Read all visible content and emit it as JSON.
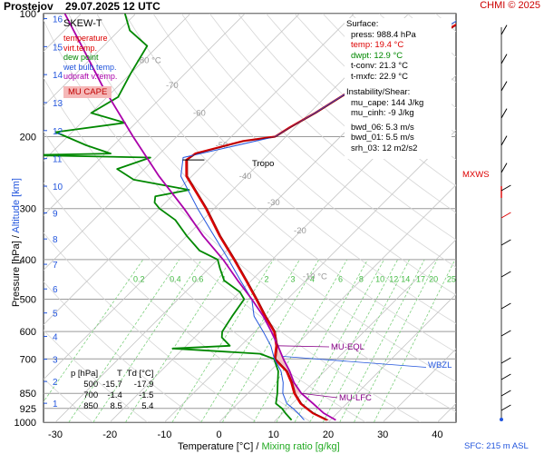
{
  "header": {
    "station": "Prostejov",
    "datetime": "29.07.2025 12 UTC",
    "credit": "CHMI © 2025"
  },
  "diagram_label": "SKEW-T",
  "legend": [
    {
      "label": "temperature",
      "color": "#dd0000"
    },
    {
      "label": "virt.temp.",
      "color": "#dd0000"
    },
    {
      "label": "dew point",
      "color": "#008800"
    },
    {
      "label": "wet bulb temp.",
      "color": "#2255dd"
    },
    {
      "label": "udpraft v.temp.",
      "color": "#aa00aa"
    }
  ],
  "mu_cape_badge": "MU CAPE",
  "info": {
    "surface_heading": "Surface:",
    "press": "press: 988.4 hPa",
    "temp": "temp: 19.4 °C",
    "dwpt": "dwpt: 12.9 °C",
    "t_conv": "t-conv: 21.3 °C",
    "t_mxfc": "t-mxfc: 22.9 °C",
    "instability_heading": "Instability/Shear:",
    "mu_cape": "mu_cape: 144 J/kg",
    "mu_cinh": "mu_cinh: -9 J/kg",
    "bwd_06": "bwd_06: 5.3 m/s",
    "bwd_01": "bwd_01: 5.5 m/s",
    "srh_03": "srh_03: 12 m2/s2",
    "colors": {
      "temp": "#dd0000",
      "dwpt": "#008800"
    }
  },
  "level_table": {
    "headers": [
      "p [hPa]",
      "T",
      "Td [°C]"
    ],
    "rows": [
      [
        "500",
        "-15.7",
        "-17.9"
      ],
      [
        "700",
        "-1.4",
        "-1.5"
      ],
      [
        "850",
        "8.5",
        "5.4"
      ]
    ]
  },
  "annotations": {
    "tropo": "Tropo",
    "mu_eql": "MU-EQL",
    "mu_lfc": "MU-LFC",
    "wbzl": "WBZL",
    "mxws": "MXWS",
    "sfc": "SFC: 215 m ASL"
  },
  "axes": {
    "xlabel_temp": "Temperature [°C]",
    "xlabel_sep": "/",
    "xlabel_mix": "Mixing ratio [g/kg]",
    "ylabel_pressure": "Pressure [hPa]",
    "ylabel_sep": "/",
    "ylabel_altitude": "Altitude [km]"
  },
  "chart_data": {
    "type": "line",
    "subtype": "skew-t log-p",
    "pressure_ticks": [
      100,
      200,
      300,
      400,
      500,
      600,
      700,
      850,
      925,
      1000
    ],
    "temperature_ticks": [
      -30,
      -20,
      -10,
      0,
      10,
      20,
      30,
      40
    ],
    "xlim": [
      -36,
      46
    ],
    "ylim_hpa": [
      1000,
      100
    ],
    "altitude_ticks_km": [
      1,
      2,
      3,
      4,
      5,
      6,
      7,
      8,
      9,
      10,
      11,
      12,
      13,
      14,
      15,
      16
    ],
    "mixing_ratio_labels": [
      "0.2",
      "0.4",
      "0.6",
      "1",
      "2",
      "3",
      "4",
      "6",
      "8",
      "10",
      "12",
      "14",
      "17",
      "20",
      "25"
    ],
    "isotherm_labels": [
      "-80 °C",
      "-70",
      "-60",
      "-50",
      "-40",
      "-30",
      "-20",
      "-10 °C"
    ],
    "grid": true,
    "series": [
      {
        "name": "temperature",
        "color": "#dd0000",
        "points": [
          [
            988,
            19.4
          ],
          [
            950,
            15.5
          ],
          [
            925,
            13.5
          ],
          [
            900,
            11.5
          ],
          [
            850,
            8.5
          ],
          [
            800,
            6.0
          ],
          [
            750,
            3.0
          ],
          [
            700,
            -1.4
          ],
          [
            650,
            -3.5
          ],
          [
            600,
            -6.5
          ],
          [
            550,
            -11
          ],
          [
            500,
            -15.7
          ],
          [
            450,
            -21
          ],
          [
            400,
            -27
          ],
          [
            350,
            -34
          ],
          [
            300,
            -41.5
          ],
          [
            250,
            -51
          ],
          [
            228,
            -54
          ],
          [
            220,
            -53.5
          ],
          [
            205,
            -47
          ],
          [
            200,
            -42
          ],
          [
            190,
            -41
          ],
          [
            175,
            -39
          ],
          [
            150,
            -36
          ],
          [
            130,
            -34
          ],
          [
            110,
            -30
          ],
          [
            100,
            -28
          ]
        ]
      },
      {
        "name": "dew point",
        "color": "#008800",
        "points": [
          [
            988,
            12.9
          ],
          [
            950,
            10.5
          ],
          [
            925,
            9
          ],
          [
            900,
            7
          ],
          [
            850,
            5.4
          ],
          [
            800,
            3.5
          ],
          [
            750,
            1.5
          ],
          [
            700,
            -1.5
          ],
          [
            680,
            -5
          ],
          [
            660,
            -22
          ],
          [
            650,
            -12
          ],
          [
            620,
            -15
          ],
          [
            600,
            -16
          ],
          [
            550,
            -17
          ],
          [
            500,
            -17.9
          ],
          [
            480,
            -20
          ],
          [
            450,
            -25
          ],
          [
            420,
            -28
          ],
          [
            400,
            -30
          ],
          [
            380,
            -35
          ],
          [
            350,
            -40
          ],
          [
            320,
            -45
          ],
          [
            300,
            -50
          ],
          [
            290,
            -52
          ],
          [
            280,
            -53
          ],
          [
            270,
            -48
          ],
          [
            255,
            -60
          ],
          [
            240,
            -65
          ],
          [
            225,
            -61
          ],
          [
            222,
            -84
          ],
          [
            220,
            -69
          ],
          [
            210,
            -75
          ],
          [
            195,
            -83
          ],
          [
            185,
            -72
          ],
          [
            175,
            -80
          ],
          [
            160,
            -78
          ],
          [
            140,
            -80
          ],
          [
            120,
            -82
          ],
          [
            110,
            -88
          ],
          [
            100,
            -92
          ]
        ]
      },
      {
        "name": "wet bulb temp.",
        "color": "#2255dd",
        "points": [
          [
            988,
            15.2
          ],
          [
            950,
            12.8
          ],
          [
            925,
            11
          ],
          [
            900,
            9
          ],
          [
            850,
            6.4
          ],
          [
            800,
            4.5
          ],
          [
            750,
            2.0
          ],
          [
            700,
            -1.45
          ],
          [
            650,
            -4.5
          ],
          [
            600,
            -8.5
          ],
          [
            550,
            -13
          ],
          [
            500,
            -16.5
          ],
          [
            450,
            -22
          ],
          [
            400,
            -28
          ],
          [
            350,
            -35
          ],
          [
            300,
            -43
          ],
          [
            250,
            -52
          ],
          [
            225,
            -55
          ],
          [
            200,
            -42
          ],
          [
            175,
            -39
          ],
          [
            150,
            -36
          ],
          [
            125,
            -34
          ],
          [
            100,
            -29
          ]
        ]
      },
      {
        "name": "udpraft v.temp.",
        "color": "#aa00aa",
        "points": [
          [
            988,
            21
          ],
          [
            950,
            17.5
          ],
          [
            900,
            13.8
          ],
          [
            850,
            9.8
          ],
          [
            800,
            6.5
          ],
          [
            750,
            3.6
          ],
          [
            700,
            0.2
          ],
          [
            650,
            -3.2
          ],
          [
            600,
            -7
          ],
          [
            550,
            -11.3
          ],
          [
            500,
            -16.5
          ],
          [
            450,
            -22.5
          ],
          [
            400,
            -29
          ],
          [
            350,
            -37
          ],
          [
            300,
            -45.5
          ],
          [
            250,
            -56
          ],
          [
            200,
            -68
          ],
          [
            150,
            -83
          ],
          [
            120,
            -94
          ],
          [
            100,
            -103
          ]
        ]
      }
    ]
  }
}
